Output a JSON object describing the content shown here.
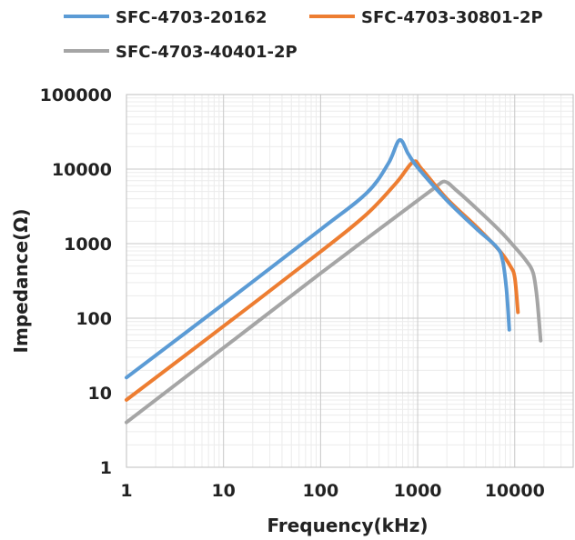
{
  "chart_data": {
    "type": "line",
    "x_scale": "log",
    "y_scale": "log",
    "xlabel": "Frequency(kHz)",
    "ylabel": "Impedance(Ω)",
    "xlim": [
      1,
      40000
    ],
    "ylim": [
      1,
      100000
    ],
    "x_ticks": [
      "1",
      "10",
      "100",
      "1000",
      "10000"
    ],
    "y_ticks": [
      "1",
      "10",
      "100",
      "1000",
      "10000",
      "100000"
    ],
    "grid": true,
    "legend_position": "top",
    "series": [
      {
        "name": "SFC-4703-20162",
        "color": "#5b9bd5",
        "points": [
          [
            1,
            16
          ],
          [
            10,
            155
          ],
          [
            100,
            1550
          ],
          [
            300,
            4800
          ],
          [
            500,
            12000
          ],
          [
            650,
            24500
          ],
          [
            800,
            16000
          ],
          [
            1000,
            10500
          ],
          [
            2000,
            3800
          ],
          [
            4000,
            1600
          ],
          [
            6500,
            900
          ],
          [
            7500,
            600
          ],
          [
            8200,
            250
          ],
          [
            8800,
            70
          ]
        ]
      },
      {
        "name": "SFC-4703-30801-2P",
        "color": "#ed7d31",
        "points": [
          [
            1,
            8
          ],
          [
            10,
            78
          ],
          [
            100,
            780
          ],
          [
            300,
            2500
          ],
          [
            600,
            6500
          ],
          [
            900,
            12500
          ],
          [
            1100,
            10000
          ],
          [
            2000,
            4000
          ],
          [
            4000,
            1700
          ],
          [
            7000,
            800
          ],
          [
            9000,
            500
          ],
          [
            10000,
            350
          ],
          [
            10800,
            120
          ]
        ]
      },
      {
        "name": "SFC-4703-40401-2P",
        "color": "#a5a5a5",
        "points": [
          [
            1,
            4
          ],
          [
            10,
            40
          ],
          [
            100,
            400
          ],
          [
            1000,
            3800
          ],
          [
            1500,
            5600
          ],
          [
            1900,
            6800
          ],
          [
            2500,
            5200
          ],
          [
            4000,
            3000
          ],
          [
            7000,
            1500
          ],
          [
            10000,
            900
          ],
          [
            13000,
            600
          ],
          [
            15500,
            400
          ],
          [
            17000,
            180
          ],
          [
            18500,
            50
          ]
        ]
      }
    ]
  }
}
